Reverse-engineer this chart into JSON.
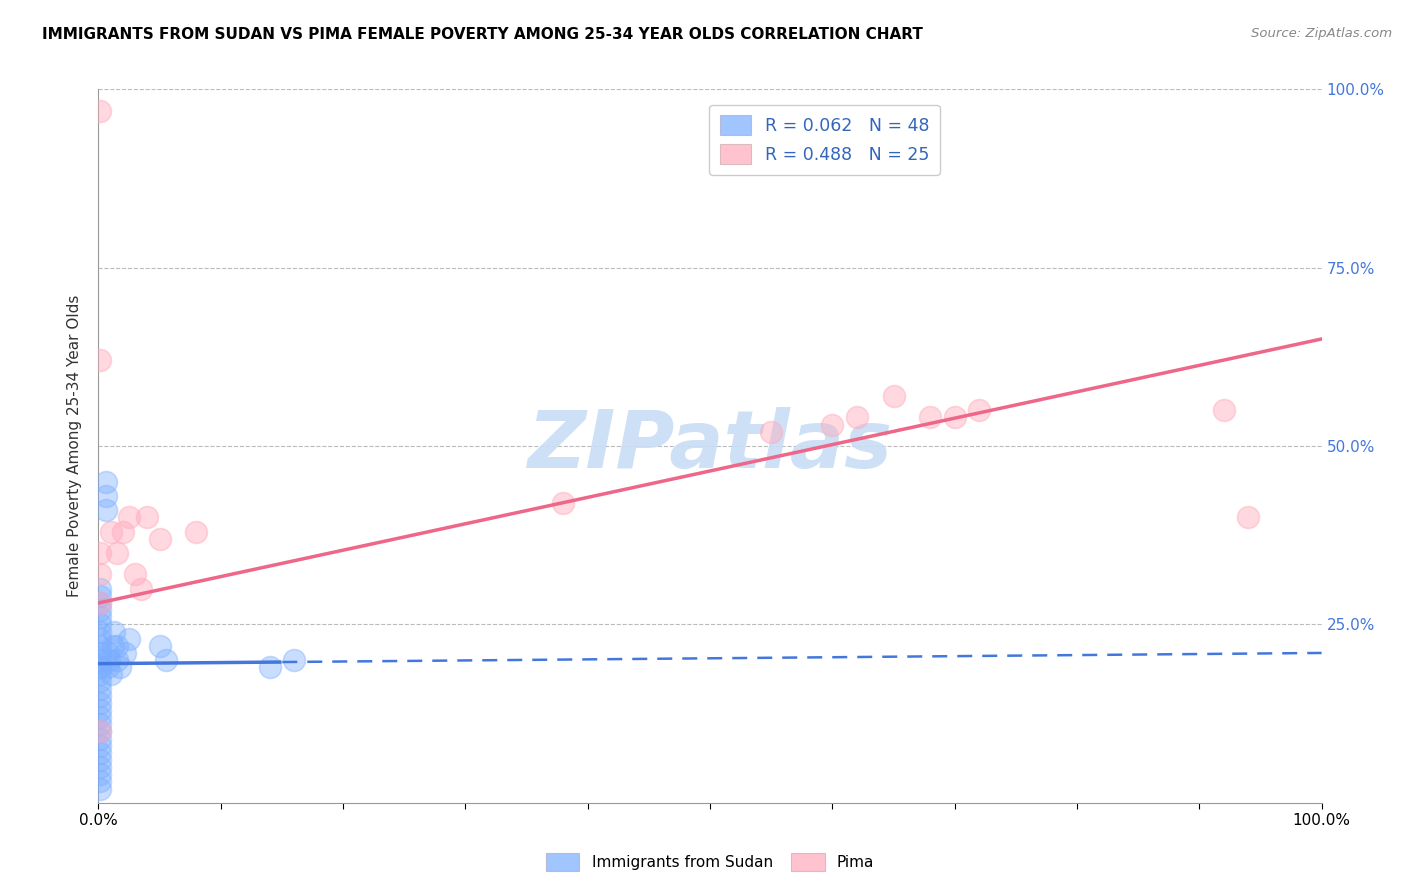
{
  "title": "IMMIGRANTS FROM SUDAN VS PIMA FEMALE POVERTY AMONG 25-34 YEAR OLDS CORRELATION CHART",
  "source": "Source: ZipAtlas.com",
  "ylabel": "Female Poverty Among 25-34 Year Olds",
  "xlim": [
    0,
    1.0
  ],
  "ylim": [
    0,
    1.0
  ],
  "xticks": [
    0.0,
    0.1,
    0.2,
    0.3,
    0.4,
    0.5,
    0.6,
    0.7,
    0.8,
    0.9,
    1.0
  ],
  "xticklabels": [
    "0.0%",
    "",
    "",
    "",
    "",
    "",
    "",
    "",
    "",
    "",
    "100.0%"
  ],
  "yticks": [
    0.0,
    0.25,
    0.5,
    0.75,
    1.0
  ],
  "yticklabels": [
    "",
    "25.0%",
    "50.0%",
    "75.0%",
    "100.0%"
  ],
  "legend_R1": "R = 0.062",
  "legend_N1": "N = 48",
  "legend_R2": "R = 0.488",
  "legend_N2": "N = 25",
  "series1_color": "#7aadff",
  "series2_color": "#ffaabb",
  "trendline1_color": "#4477dd",
  "trendline2_color": "#ee6688",
  "watermark_color": "#c8ddf5",
  "background_color": "#ffffff",
  "sudan_x": [
    0.001,
    0.001,
    0.001,
    0.001,
    0.001,
    0.001,
    0.001,
    0.001,
    0.001,
    0.001,
    0.001,
    0.001,
    0.001,
    0.001,
    0.001,
    0.001,
    0.001,
    0.001,
    0.001,
    0.001,
    0.001,
    0.001,
    0.001,
    0.001,
    0.001,
    0.001,
    0.001,
    0.001,
    0.001,
    0.001,
    0.006,
    0.006,
    0.006,
    0.008,
    0.008,
    0.009,
    0.01,
    0.012,
    0.013,
    0.015,
    0.015,
    0.018,
    0.022,
    0.025,
    0.05,
    0.055,
    0.14,
    0.16
  ],
  "sudan_y": [
    0.2,
    0.19,
    0.18,
    0.17,
    0.16,
    0.15,
    0.14,
    0.13,
    0.12,
    0.11,
    0.1,
    0.09,
    0.08,
    0.07,
    0.06,
    0.05,
    0.04,
    0.03,
    0.02,
    0.21,
    0.22,
    0.23,
    0.24,
    0.25,
    0.26,
    0.27,
    0.28,
    0.29,
    0.3,
    0.19,
    0.41,
    0.43,
    0.45,
    0.19,
    0.21,
    0.2,
    0.18,
    0.22,
    0.24,
    0.2,
    0.22,
    0.19,
    0.21,
    0.23,
    0.22,
    0.2,
    0.19,
    0.2
  ],
  "pima_x": [
    0.001,
    0.001,
    0.001,
    0.001,
    0.001,
    0.001,
    0.01,
    0.015,
    0.02,
    0.025,
    0.03,
    0.035,
    0.04,
    0.05,
    0.08,
    0.38,
    0.55,
    0.6,
    0.62,
    0.65,
    0.68,
    0.7,
    0.72,
    0.92,
    0.94
  ],
  "pima_y": [
    0.97,
    0.62,
    0.35,
    0.32,
    0.1,
    0.28,
    0.38,
    0.35,
    0.38,
    0.4,
    0.32,
    0.3,
    0.4,
    0.37,
    0.38,
    0.42,
    0.52,
    0.53,
    0.54,
    0.57,
    0.54,
    0.54,
    0.55,
    0.55,
    0.4
  ],
  "trendline1_x0": 0.0,
  "trendline1_y0": 0.195,
  "trendline1_x1": 1.0,
  "trendline1_y1": 0.21,
  "trendline1_solid_end": 0.15,
  "trendline2_x0": 0.0,
  "trendline2_y0": 0.28,
  "trendline2_x1": 1.0,
  "trendline2_y1": 0.65
}
